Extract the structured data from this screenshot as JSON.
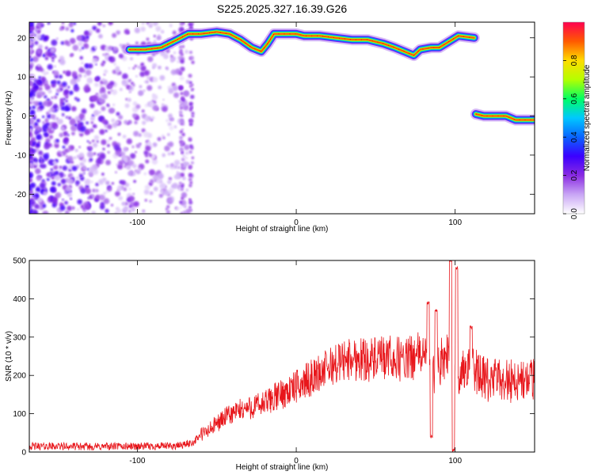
{
  "title": "S225.2025.327.16.39.G26",
  "chart_data": [
    {
      "type": "heatmap",
      "name": "spectrogram",
      "xlabel": "Height of straight line (km)",
      "ylabel": "Frequency (Hz)",
      "xlim": [
        -168,
        150
      ],
      "ylim": [
        -25,
        24
      ],
      "xticks": [
        -100,
        0,
        100
      ],
      "yticks": [
        -20,
        -10,
        0,
        10,
        20
      ],
      "xtick_labels": [
        "-100",
        "0",
        "100"
      ],
      "ytick_labels": [
        "-20",
        "-10",
        "0",
        "10",
        "20"
      ],
      "colorbar": {
        "label": "Normalized spectral amplitude",
        "range": [
          0,
          1
        ],
        "ticks": [
          0.0,
          0.2,
          0.4,
          0.6,
          0.8
        ],
        "tick_labels": [
          "0.0",
          "0.2",
          "0.4",
          "0.6",
          "0.8"
        ],
        "colormap": [
          "#ffffff",
          "#c9a6f5",
          "#8a2be2",
          "#3b00ff",
          "#0a64ff",
          "#00c8ff",
          "#00ff64",
          "#b4ff00",
          "#ffdc00",
          "#ff5a00",
          "#ff0050"
        ]
      },
      "noise_region": {
        "x_range": [
          -168,
          -68
        ],
        "frequency_range": [
          -25,
          24
        ],
        "amplitude": 0.2
      },
      "tracks": [
        {
          "name": "upper-track",
          "points": [
            [
              -105,
              17
            ],
            [
              -95,
              17
            ],
            [
              -85,
              17.5
            ],
            [
              -75,
              19.5
            ],
            [
              -68,
              21
            ],
            [
              -60,
              21
            ],
            [
              -50,
              21.5
            ],
            [
              -42,
              21
            ],
            [
              -35,
              19.5
            ],
            [
              -28,
              17.5
            ],
            [
              -22,
              16.5
            ],
            [
              -18,
              18.5
            ],
            [
              -14,
              21
            ],
            [
              -8,
              21
            ],
            [
              0,
              21
            ],
            [
              5,
              20.5
            ],
            [
              15,
              20.5
            ],
            [
              25,
              20
            ],
            [
              35,
              19.5
            ],
            [
              45,
              19.5
            ],
            [
              55,
              18.5
            ],
            [
              62,
              17.5
            ],
            [
              68,
              16.5
            ],
            [
              74,
              15.5
            ],
            [
              78,
              17
            ],
            [
              85,
              17.5
            ],
            [
              90,
              17.5
            ],
            [
              96,
              19
            ],
            [
              102,
              20.5
            ],
            [
              112,
              20
            ]
          ],
          "peak_amplitude": 0.95
        },
        {
          "name": "lower-track",
          "points": [
            [
              113,
              0.5
            ],
            [
              118,
              0
            ],
            [
              125,
              0
            ],
            [
              132,
              0
            ],
            [
              138,
              -1
            ],
            [
              150,
              -1
            ]
          ],
          "peak_amplitude": 0.95
        }
      ]
    },
    {
      "type": "line",
      "name": "snr",
      "xlabel": "Height of straight line (km)",
      "ylabel": "SNR (10 * v/v)",
      "xlim": [
        -168,
        150
      ],
      "ylim": [
        0,
        500
      ],
      "xticks": [
        -100,
        0,
        100
      ],
      "yticks": [
        0,
        100,
        200,
        300,
        400,
        500
      ],
      "xtick_labels": [
        "-100",
        "0",
        "100"
      ],
      "ytick_labels": [
        "0",
        "100",
        "200",
        "300",
        "400",
        "500"
      ],
      "line_color": "#e8161b",
      "series": [
        {
          "name": "SNR",
          "x": [
            -168,
            -150,
            -130,
            -110,
            -90,
            -75,
            -70,
            -65,
            -60,
            -55,
            -50,
            -45,
            -40,
            -35,
            -30,
            -25,
            -20,
            -15,
            -10,
            -5,
            0,
            10,
            20,
            30,
            40,
            50,
            60,
            70,
            80,
            85,
            90,
            95,
            98,
            100,
            105,
            110,
            115,
            120,
            130,
            140,
            150
          ],
          "y": [
            15,
            15,
            14,
            15,
            15,
            16,
            20,
            25,
            45,
            55,
            75,
            90,
            100,
            110,
            115,
            120,
            125,
            140,
            150,
            160,
            170,
            195,
            220,
            240,
            245,
            240,
            245,
            240,
            260,
            200,
            230,
            260,
            300,
            200,
            210,
            230,
            200,
            185,
            190,
            185,
            185
          ]
        }
      ],
      "spikes": [
        {
          "x": 83,
          "y": 390
        },
        {
          "x": 85,
          "y": 40
        },
        {
          "x": 88,
          "y": 370
        },
        {
          "x": 97,
          "y": 500
        },
        {
          "x": 99,
          "y": 5
        },
        {
          "x": 101,
          "y": 480
        },
        {
          "x": 110,
          "y": 325
        }
      ]
    }
  ]
}
